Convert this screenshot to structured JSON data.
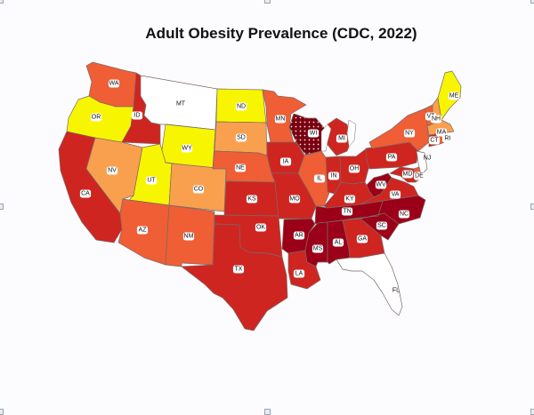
{
  "title": "Adult Obesity Prevalence (CDC, 2022)",
  "colors": {
    "none": "#ffffff",
    "c1": "#f7f500",
    "c2": "#f9a04f",
    "c3": "#ef5e35",
    "c4": "#cf2520",
    "c5": "#9c0018",
    "hatched": "#7a0010"
  },
  "states": [
    {
      "id": "WA",
      "label": "WA",
      "cat": "c3"
    },
    {
      "id": "OR",
      "label": "OR",
      "cat": "c1"
    },
    {
      "id": "CA",
      "label": "CA",
      "cat": "c4"
    },
    {
      "id": "ID",
      "label": "ID",
      "cat": "c4"
    },
    {
      "id": "NV",
      "label": "NV",
      "cat": "c2"
    },
    {
      "id": "MT",
      "label": "MT",
      "cat": "none"
    },
    {
      "id": "WY",
      "label": "WY",
      "cat": "c1"
    },
    {
      "id": "UT",
      "label": "UT",
      "cat": "c1"
    },
    {
      "id": "AZ",
      "label": "AZ",
      "cat": "c3"
    },
    {
      "id": "CO",
      "label": "CO",
      "cat": "c2"
    },
    {
      "id": "NM",
      "label": "NM",
      "cat": "c3"
    },
    {
      "id": "ND",
      "label": "ND",
      "cat": "c1"
    },
    {
      "id": "SD",
      "label": "SD",
      "cat": "c2"
    },
    {
      "id": "NE",
      "label": "NE",
      "cat": "c3"
    },
    {
      "id": "KS",
      "label": "KS",
      "cat": "c4"
    },
    {
      "id": "OK",
      "label": "OK",
      "cat": "c4"
    },
    {
      "id": "TX",
      "label": "TX",
      "cat": "c4"
    },
    {
      "id": "MN",
      "label": "MN",
      "cat": "c3"
    },
    {
      "id": "IA",
      "label": "IA",
      "cat": "c4"
    },
    {
      "id": "MO",
      "label": "MO",
      "cat": "c4"
    },
    {
      "id": "AR",
      "label": "AR",
      "cat": "c5"
    },
    {
      "id": "LA",
      "label": "LA",
      "cat": "c4"
    },
    {
      "id": "WI",
      "label": "WI",
      "cat": "hatched"
    },
    {
      "id": "IL",
      "label": "IL",
      "cat": "c3"
    },
    {
      "id": "MI",
      "label": "MI",
      "cat": "c4"
    },
    {
      "id": "IN",
      "label": "IN",
      "cat": "c4"
    },
    {
      "id": "OH",
      "label": "OH",
      "cat": "c4"
    },
    {
      "id": "KY",
      "label": "KY",
      "cat": "c4"
    },
    {
      "id": "TN",
      "label": "TN",
      "cat": "c5"
    },
    {
      "id": "MS",
      "label": "MS",
      "cat": "c5"
    },
    {
      "id": "AL",
      "label": "AL",
      "cat": "c5"
    },
    {
      "id": "GA",
      "label": "GA",
      "cat": "c4"
    },
    {
      "id": "FL",
      "label": "FL",
      "cat": "none"
    },
    {
      "id": "SC",
      "label": "SC",
      "cat": "c5"
    },
    {
      "id": "NC",
      "label": "NC",
      "cat": "c5"
    },
    {
      "id": "VA",
      "label": "VA",
      "cat": "c4"
    },
    {
      "id": "WV",
      "label": "WV",
      "cat": "c5"
    },
    {
      "id": "PA",
      "label": "PA",
      "cat": "c4"
    },
    {
      "id": "NY",
      "label": "NY",
      "cat": "c3"
    },
    {
      "id": "NJ",
      "label": "NJ",
      "cat": "none"
    },
    {
      "id": "MD",
      "label": "MD",
      "cat": "c4"
    },
    {
      "id": "DE",
      "label": "DE",
      "cat": "c3"
    },
    {
      "id": "VT",
      "label": "VT",
      "cat": "c3"
    },
    {
      "id": "NH",
      "label": "NH",
      "cat": "c2"
    },
    {
      "id": "ME",
      "label": "ME",
      "cat": "c1"
    },
    {
      "id": "MA",
      "label": "MA",
      "cat": "c2"
    },
    {
      "id": "CT",
      "label": "CT",
      "cat": "c4"
    },
    {
      "id": "RI",
      "label": "RI",
      "cat": "c3"
    }
  ]
}
